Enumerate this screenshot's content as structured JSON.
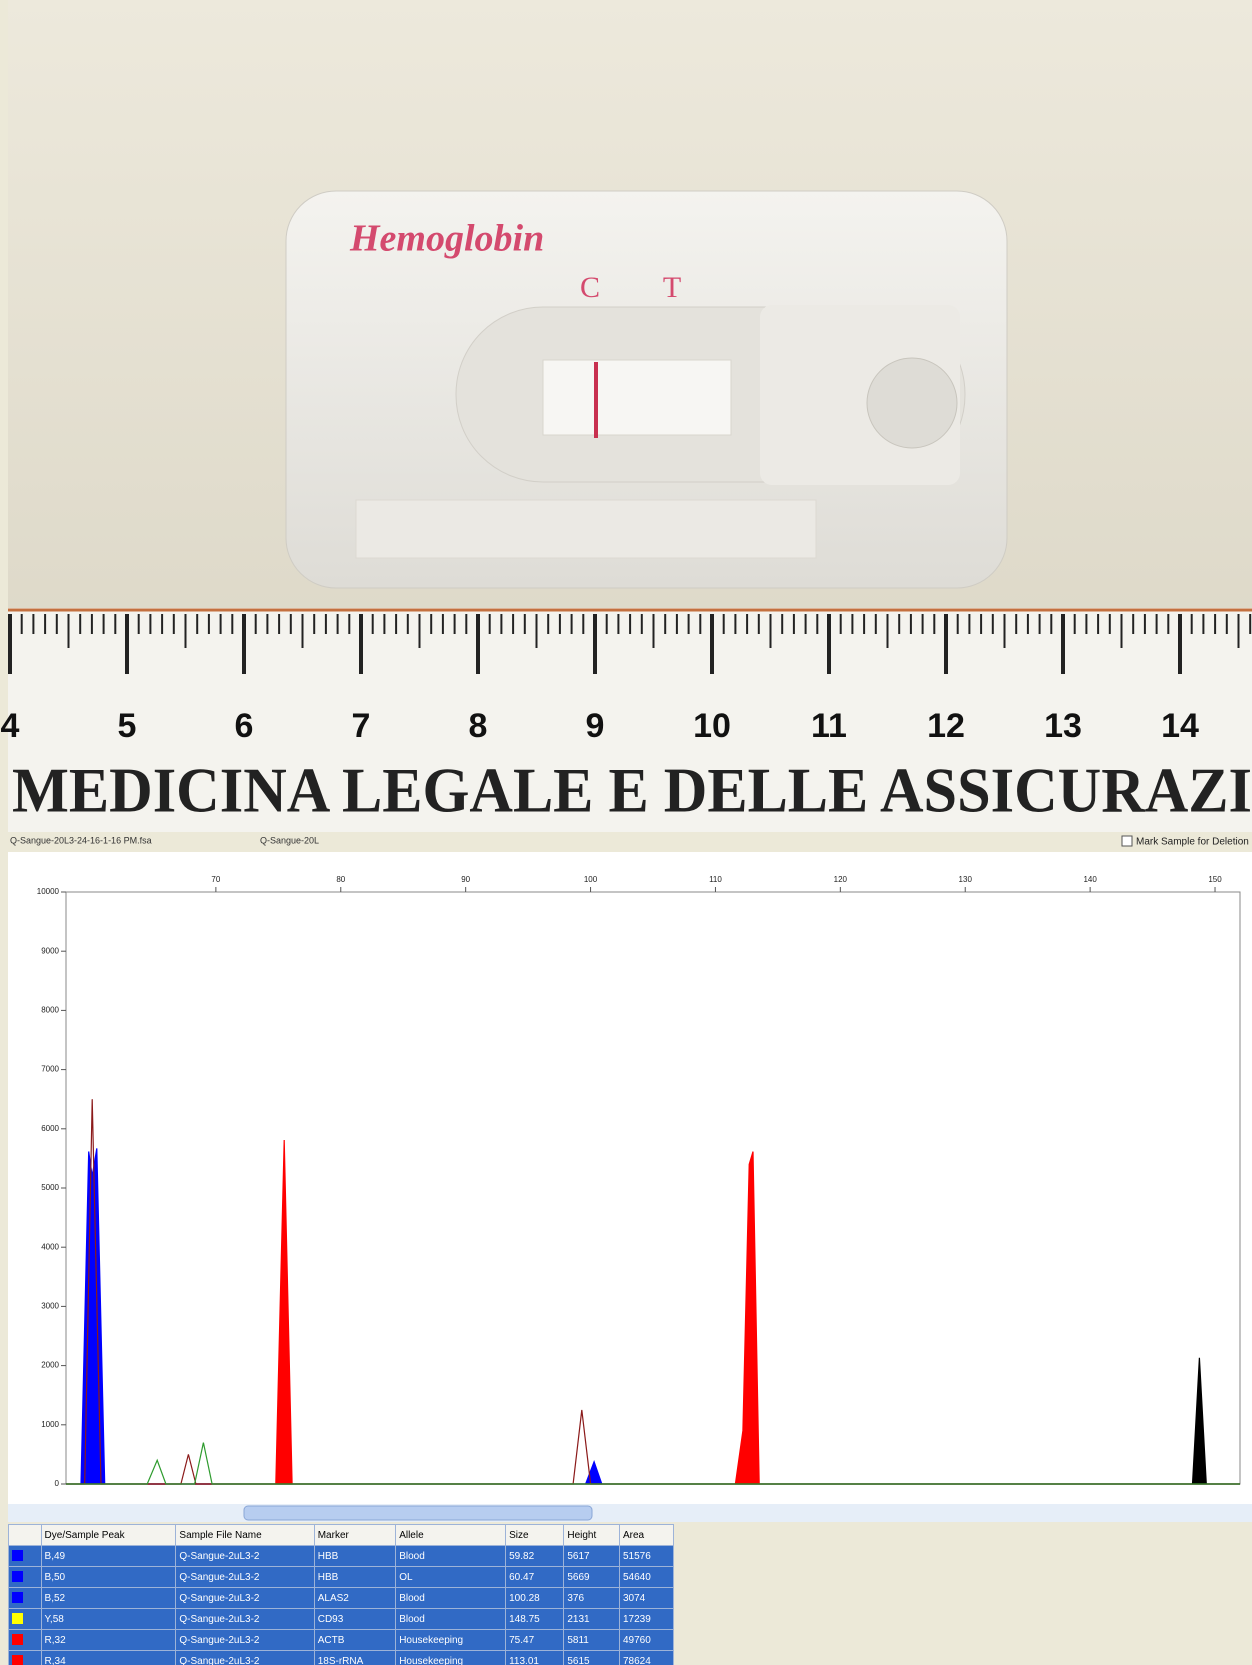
{
  "photo": {
    "device_label": "Hemoglobin",
    "control": "C",
    "test": "T",
    "ruler_numbers": [
      "4",
      "5",
      "6",
      "7",
      "8",
      "9",
      "10",
      "11",
      "12",
      "13",
      "14"
    ],
    "ruler_text": "MEDICINA LEGALE E DELLE ASSICURAZI"
  },
  "window": {
    "file_name": "Q-Sangue-20L3-24-16-1-16 PM.fsa",
    "sample_name": "Q-Sangue-20L",
    "mark_deletion": "Mark Sample for Deletion"
  },
  "chart_data": {
    "type": "line",
    "xlim": [
      58,
      152
    ],
    "ylim": [
      0,
      10000
    ],
    "xticks": [
      70,
      80,
      90,
      100,
      110,
      120,
      130,
      140,
      150
    ],
    "yticks": [
      0,
      1000,
      2000,
      3000,
      4000,
      5000,
      6000,
      7000,
      8000,
      9000,
      10000
    ],
    "series": [
      {
        "color": "#0000ff",
        "fill": true,
        "x": [
          58,
          59.2,
          59.82,
          60.1,
          60.47,
          61.1,
          99.6,
          100.28,
          100.9,
          152
        ],
        "values": [
          0,
          0,
          5617,
          5200,
          5669,
          0,
          0,
          376,
          0,
          0
        ]
      },
      {
        "color": "#ff0000",
        "fill": true,
        "x": [
          58,
          74.8,
          75.47,
          76.1,
          111.6,
          112.2,
          112.7,
          113.01,
          113.5,
          152
        ],
        "values": [
          0,
          0,
          5811,
          0,
          0,
          900,
          5400,
          5615,
          0,
          0
        ]
      },
      {
        "color": "#000000",
        "fill": true,
        "x": [
          58,
          148.2,
          148.75,
          149.3,
          152
        ],
        "values": [
          0,
          0,
          2131,
          0,
          0
        ]
      },
      {
        "color": "#8b1a1a",
        "fill": false,
        "x": [
          58,
          59.5,
          60.1,
          60.8,
          67.2,
          67.8,
          68.4,
          98.6,
          99.3,
          100,
          152
        ],
        "values": [
          0,
          0,
          6500,
          0,
          0,
          500,
          0,
          0,
          1250,
          0,
          0
        ]
      },
      {
        "color": "#2e9b2e",
        "fill": false,
        "x": [
          58,
          64.5,
          65.3,
          66,
          68.3,
          69,
          69.7,
          152
        ],
        "values": [
          0,
          0,
          400,
          0,
          0,
          700,
          0,
          0
        ]
      }
    ]
  },
  "table": {
    "columns": [
      "",
      "Dye/Sample Peak",
      "Sample File Name",
      "Marker",
      "Allele",
      "Size",
      "Height",
      "Area"
    ],
    "dye_colors": [
      "#0000ff",
      "#0000ff",
      "#0000ff",
      "#ffff00",
      "#ff0000",
      "#ff0000"
    ],
    "rows": [
      [
        "B,49",
        "Q-Sangue-2uL3-2",
        "HBB",
        "Blood",
        "59.82",
        "5617",
        "51576"
      ],
      [
        "B,50",
        "Q-Sangue-2uL3-2",
        "HBB",
        "OL",
        "60.47",
        "5669",
        "54640"
      ],
      [
        "B,52",
        "Q-Sangue-2uL3-2",
        "ALAS2",
        "Blood",
        "100.28",
        "376",
        "3074"
      ],
      [
        "Y,58",
        "Q-Sangue-2uL3-2",
        "CD93",
        "Blood",
        "148.75",
        "2131",
        "17239"
      ],
      [
        "R,32",
        "Q-Sangue-2uL3-2",
        "ACTB",
        "Housekeeping",
        "75.47",
        "5811",
        "49760"
      ],
      [
        "R,34",
        "Q-Sangue-2uL3-2",
        "18S-rRNA",
        "Housekeeping",
        "113.01",
        "5615",
        "78624"
      ]
    ]
  }
}
